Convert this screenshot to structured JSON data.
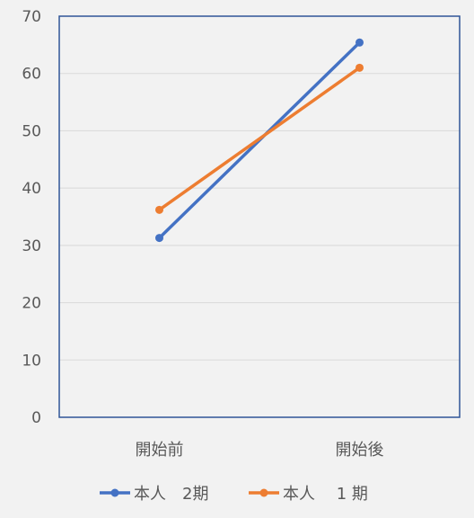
{
  "chart_data": {
    "type": "line",
    "categories": [
      "開始前",
      "開始後"
    ],
    "series": [
      {
        "name": "本人　2期",
        "values": [
          31.3,
          65.4
        ],
        "color": "#4472C4"
      },
      {
        "name": "本人　 1 期",
        "values": [
          36.2,
          61.0
        ],
        "color": "#ED7D31"
      }
    ],
    "title": "",
    "xlabel": "",
    "ylabel": "",
    "ylim": [
      0,
      70
    ],
    "yticks": [
      0,
      10,
      20,
      30,
      40,
      50,
      60,
      70
    ],
    "grid": true,
    "legend_position": "bottom",
    "frame_color": "#2F5597"
  }
}
